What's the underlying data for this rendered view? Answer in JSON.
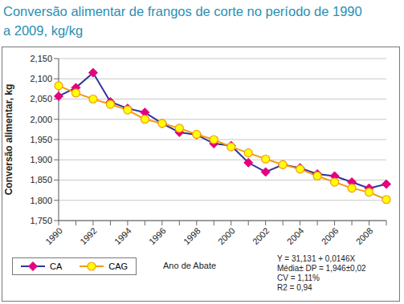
{
  "chart_data": {
    "type": "line",
    "title": "Conversão alimentar de frangos de corte no período de 1990 a 2009, kg/kg",
    "x_label": "Ano de Abate",
    "y_label": "Conversão alimentar, kg",
    "categories": [
      "1990",
      null,
      "1992",
      null,
      "1994",
      null,
      "1996",
      null,
      "1998",
      null,
      "2000",
      null,
      "2002",
      null,
      "2004",
      null,
      "2006",
      null,
      "2008",
      null
    ],
    "series": [
      {
        "name": "CA",
        "color": "#333399",
        "marker": "diamond",
        "line_style": "solid",
        "values": [
          2.057,
          2.078,
          2.115,
          2.043,
          2.027,
          2.017,
          1.99,
          1.968,
          1.962,
          1.94,
          1.935,
          1.893,
          1.87,
          1.888,
          1.88,
          1.865,
          1.86,
          1.845,
          1.83,
          1.84
        ]
      },
      {
        "name": "CAG",
        "color": "#f39c12",
        "marker": "circle",
        "line_style": "solid",
        "values": [
          2.083,
          2.065,
          2.05,
          2.037,
          2.023,
          2.0,
          1.99,
          1.978,
          1.963,
          1.95,
          1.932,
          1.917,
          1.902,
          1.888,
          1.877,
          1.86,
          1.845,
          1.83,
          1.82,
          1.802
        ]
      }
    ],
    "ylim": [
      1.75,
      2.15
    ],
    "yticks": [
      {
        "value": 1.75,
        "label": "1,750"
      },
      {
        "value": 1.8,
        "label": "1,800"
      },
      {
        "value": 1.85,
        "label": "1,850"
      },
      {
        "value": 1.9,
        "label": "1,900"
      },
      {
        "value": 1.95,
        "label": "1,950"
      },
      {
        "value": 2.0,
        "label": "2,000"
      },
      {
        "value": 2.05,
        "label": "2,050"
      },
      {
        "value": 2.1,
        "label": "2,100"
      },
      {
        "value": 2.15,
        "label": "2,150"
      }
    ],
    "grid": true,
    "legend": "lower left",
    "annotations": [
      "Y = 31,131 + 0,0146X",
      "Média± DP = 1,946±0,02",
      "CV = 1,11%",
      "R2 = 0,94"
    ]
  }
}
